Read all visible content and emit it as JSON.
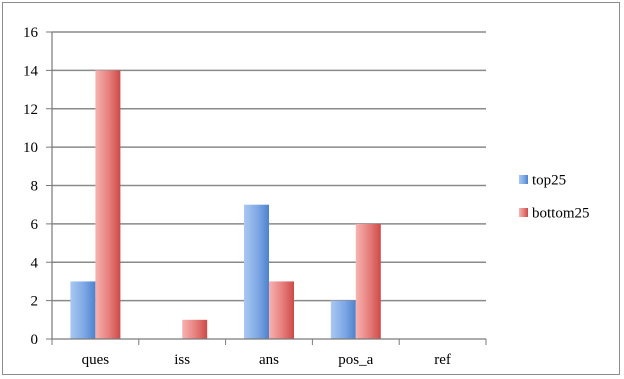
{
  "chart_data": {
    "type": "bar",
    "title": "",
    "xlabel": "",
    "ylabel": "",
    "categories": [
      "ques",
      "iss",
      "ans",
      "pos_a",
      "ref"
    ],
    "series": [
      {
        "name": "top25",
        "values": [
          3,
          0,
          7,
          2,
          0
        ],
        "color": "#5b8fd6"
      },
      {
        "name": "bottom25",
        "values": [
          14,
          1,
          3,
          6,
          0
        ],
        "color": "#d94f4f"
      }
    ],
    "ylim": [
      0,
      16
    ],
    "yticks": [
      "0",
      "2",
      "4",
      "6",
      "8",
      "10",
      "12",
      "14",
      "16"
    ],
    "grid": true,
    "legend_position": "right"
  }
}
